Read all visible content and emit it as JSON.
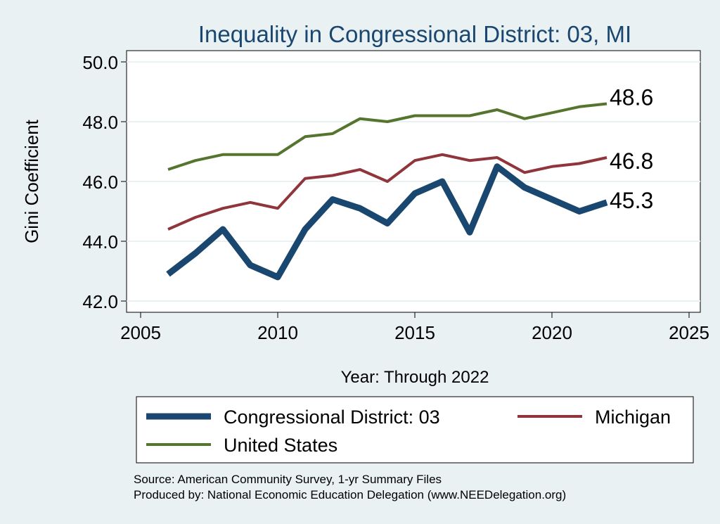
{
  "chart_data": {
    "type": "line",
    "title": "Inequality in Congressional District:  03, MI",
    "xlabel": "Year: Through 2022",
    "ylabel": "Gini Coefficient",
    "xlim": [
      2005,
      2025
    ],
    "ylim": [
      42.0,
      50.0
    ],
    "x_ticks": [
      2005,
      2010,
      2015,
      2020,
      2025
    ],
    "y_ticks": [
      42.0,
      44.0,
      46.0,
      48.0,
      50.0
    ],
    "y_tick_labels": [
      "42.0",
      "44.0",
      "46.0",
      "48.0",
      "50.0"
    ],
    "grid": "horizontal",
    "legend_position": "bottom",
    "x": [
      2006,
      2007,
      2008,
      2009,
      2010,
      2011,
      2012,
      2013,
      2014,
      2015,
      2016,
      2017,
      2018,
      2019,
      2020,
      2021,
      2022
    ],
    "series": [
      {
        "name": "Congressional District:  03",
        "color": "#1a476f",
        "values": [
          42.9,
          43.6,
          44.4,
          43.2,
          42.8,
          44.4,
          45.4,
          45.1,
          44.6,
          45.6,
          46.0,
          44.3,
          46.5,
          45.8,
          45.4,
          45.0,
          45.3
        ],
        "end_label": "45.3"
      },
      {
        "name": "Michigan",
        "color": "#90353b",
        "values": [
          44.4,
          44.8,
          45.1,
          45.3,
          45.1,
          46.1,
          46.2,
          46.4,
          46.0,
          46.7,
          46.9,
          46.7,
          46.8,
          46.3,
          46.5,
          46.6,
          46.8
        ],
        "end_label": "46.8"
      },
      {
        "name": "United States",
        "color": "#55752f",
        "values": [
          46.4,
          46.7,
          46.9,
          46.9,
          46.9,
          47.5,
          47.6,
          48.1,
          48.0,
          48.2,
          48.2,
          48.2,
          48.4,
          48.1,
          48.3,
          48.5,
          48.6
        ],
        "end_label": "48.6"
      }
    ]
  },
  "footer": {
    "source": "Source: American Community Survey, 1-yr Summary Files",
    "produced_by": "Produced by: National Economic Education Delegation (www.NEEDelegation.org)"
  }
}
